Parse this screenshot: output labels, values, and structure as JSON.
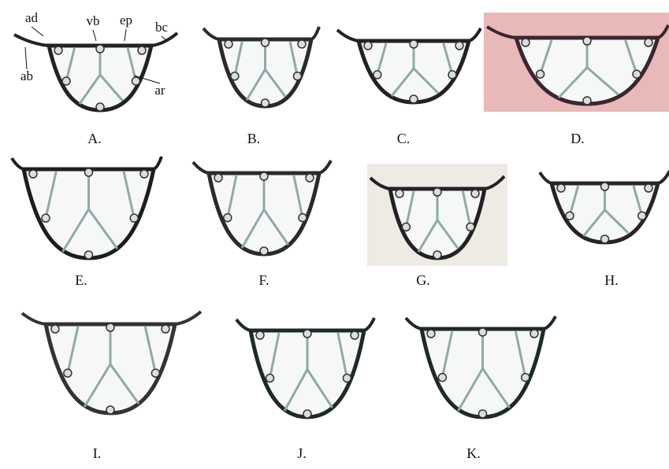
{
  "panels": [
    {
      "label": "A.",
      "annotations": [
        "ad",
        "vb",
        "ep",
        "bc",
        "ab",
        "ar"
      ]
    },
    {
      "label": "B."
    },
    {
      "label": "C."
    },
    {
      "label": "D."
    },
    {
      "label": "E."
    },
    {
      "label": "F."
    },
    {
      "label": "G."
    },
    {
      "label": "H."
    },
    {
      "label": "I."
    },
    {
      "label": "J."
    },
    {
      "label": "K."
    }
  ]
}
